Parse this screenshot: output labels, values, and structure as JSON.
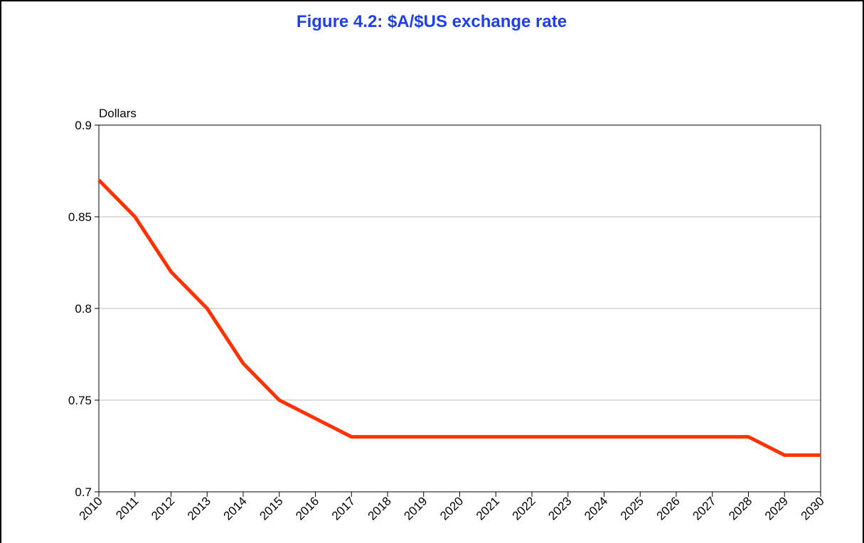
{
  "chart_data": {
    "type": "line",
    "title": "Figure 4.2:  $A/$US exchange rate",
    "y_label": "Dollars",
    "x": [
      2010,
      2011,
      2012,
      2013,
      2014,
      2015,
      2016,
      2017,
      2018,
      2019,
      2020,
      2021,
      2022,
      2023,
      2024,
      2025,
      2026,
      2027,
      2028,
      2029,
      2030
    ],
    "series": [
      {
        "name": "$A/$US",
        "color": "#ff3300",
        "values": [
          0.87,
          0.85,
          0.82,
          0.8,
          0.77,
          0.75,
          0.74,
          0.73,
          0.73,
          0.73,
          0.73,
          0.73,
          0.73,
          0.73,
          0.73,
          0.73,
          0.73,
          0.73,
          0.73,
          0.72,
          0.72
        ]
      }
    ],
    "xlim": [
      2010,
      2030
    ],
    "xticks": [
      2010,
      2011,
      2012,
      2013,
      2014,
      2015,
      2016,
      2017,
      2018,
      2019,
      2020,
      2021,
      2022,
      2023,
      2024,
      2025,
      2026,
      2027,
      2028,
      2029,
      2030
    ],
    "ylim": [
      0.7,
      0.9
    ],
    "yticks": [
      0.7,
      0.75,
      0.8,
      0.85,
      0.9
    ],
    "grid": true,
    "legend": false
  }
}
